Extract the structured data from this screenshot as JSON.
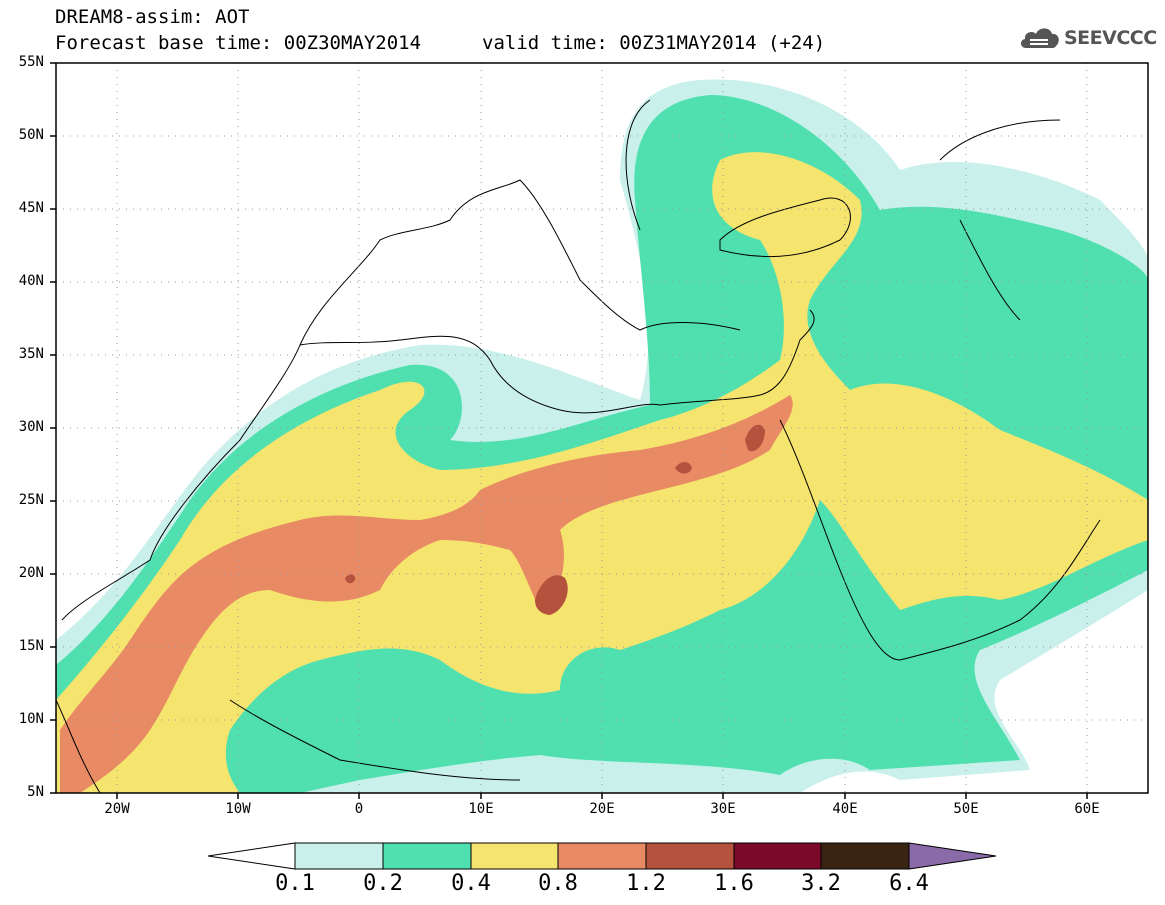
{
  "header": {
    "line1": "DREAM8-assim: AOT",
    "line2_base": "Forecast base time: 00Z30MAY2014",
    "line2_valid": "valid time: 00Z31MAY2014 (+24)"
  },
  "logo": {
    "text": "SEEVCCC",
    "icon": "cloud-icon"
  },
  "map": {
    "lat_labels": [
      "55N",
      "50N",
      "45N",
      "40N",
      "35N",
      "30N",
      "25N",
      "20N",
      "15N",
      "10N",
      "5N"
    ],
    "lon_labels": [
      "20W",
      "10W",
      "0",
      "10E",
      "20E",
      "30E",
      "40E",
      "50E",
      "60E"
    ],
    "extent": {
      "lon_min": -25,
      "lon_max": 65,
      "lat_min": 5,
      "lat_max": 55
    }
  },
  "colorbar": {
    "labels": [
      "0.1",
      "0.2",
      "0.4",
      "0.8",
      "1.2",
      "1.6",
      "3.2",
      "6.4"
    ],
    "colors": [
      "#ffffff",
      "#c9f0eb",
      "#50e0b0",
      "#f5e46e",
      "#e88a64",
      "#b5523e",
      "#7a0a28",
      "#3a2414",
      "#8a6aa8"
    ]
  }
}
